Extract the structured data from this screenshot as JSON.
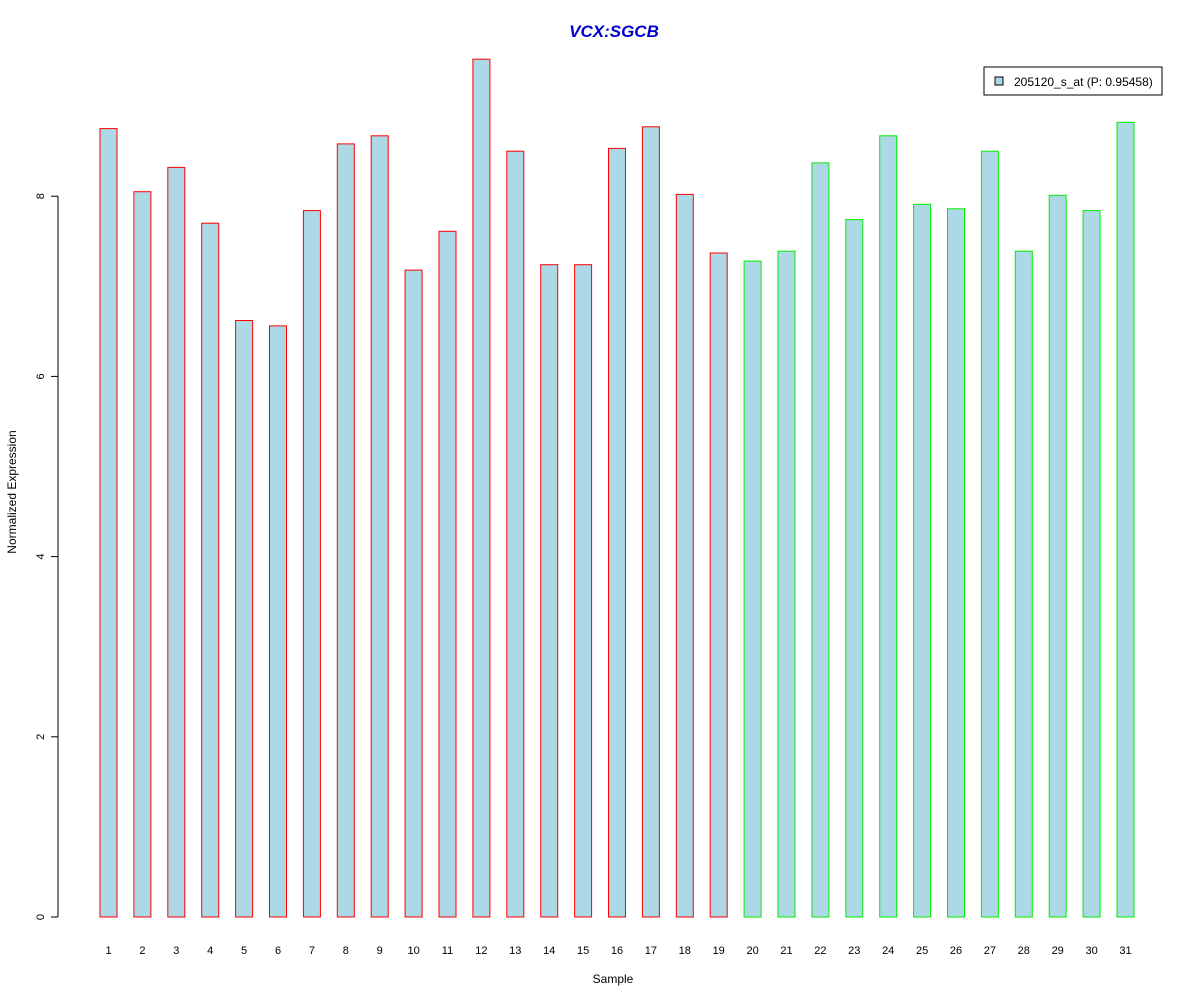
{
  "chart_data": {
    "type": "bar",
    "title": "VCX:SGCB",
    "xlabel": "Sample",
    "ylabel": "Normalized Expression",
    "categories": [
      "1",
      "2",
      "3",
      "4",
      "5",
      "6",
      "7",
      "8",
      "9",
      "10",
      "11",
      "12",
      "13",
      "14",
      "15",
      "16",
      "17",
      "18",
      "19",
      "20",
      "21",
      "22",
      "23",
      "24",
      "25",
      "26",
      "27",
      "28",
      "29",
      "30",
      "31"
    ],
    "series": [
      {
        "name": "205120_s_at (P: 0.95458)",
        "values": [
          8.75,
          8.05,
          8.32,
          7.7,
          6.62,
          6.56,
          7.84,
          8.58,
          8.67,
          7.18,
          7.61,
          9.52,
          8.5,
          7.24,
          7.24,
          8.53,
          8.77,
          8.02,
          7.37,
          7.28,
          7.39,
          8.37,
          7.74,
          8.67,
          7.91,
          7.86,
          8.5,
          7.39,
          8.01,
          7.84,
          8.82
        ]
      }
    ],
    "group_colors": [
      "#ff0000",
      "#ff0000",
      "#ff0000",
      "#ff0000",
      "#ff0000",
      "#ff0000",
      "#ff0000",
      "#ff0000",
      "#ff0000",
      "#ff0000",
      "#ff0000",
      "#ff0000",
      "#ff0000",
      "#ff0000",
      "#ff0000",
      "#ff0000",
      "#ff0000",
      "#ff0000",
      "#ff0000",
      "#00ee00",
      "#00ee00",
      "#00ee00",
      "#00ee00",
      "#00ee00",
      "#00ee00",
      "#00ee00",
      "#00ee00",
      "#00ee00",
      "#00ee00",
      "#00ee00",
      "#00ee00"
    ],
    "y_ticks": [
      0,
      2,
      4,
      6,
      8
    ],
    "ylim": [
      0,
      9.55
    ],
    "grid": false,
    "legend_position": "top-right",
    "colors": {
      "bar_fill": "#add8e6",
      "title": "#0000cc",
      "axis": "#000000"
    }
  }
}
